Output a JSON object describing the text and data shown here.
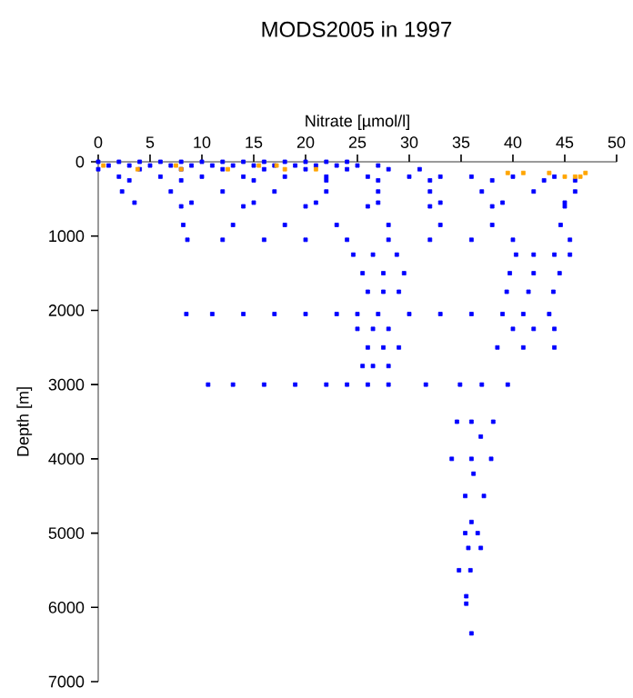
{
  "chart_data": {
    "type": "scatter",
    "title": "MODS2005 in 1997",
    "xlabel": "Nitrate [µmol/l]",
    "ylabel": "Depth [m]",
    "xlim": [
      0,
      50
    ],
    "ylim": [
      7000,
      0
    ],
    "xticks": [
      0,
      5,
      10,
      15,
      20,
      25,
      30,
      35,
      40,
      45,
      50
    ],
    "yticks": [
      0,
      1000,
      2000,
      3000,
      4000,
      5000,
      6000,
      7000
    ],
    "marker": "square",
    "series": [
      {
        "color": "#0000ff",
        "x": [
          0,
          2,
          4,
          6,
          8,
          10,
          12,
          14,
          16,
          18,
          20,
          22,
          24,
          1,
          3,
          5,
          7,
          9,
          11,
          13,
          15,
          17,
          19,
          21,
          23,
          25,
          27,
          0,
          4,
          8,
          12,
          16,
          20,
          24,
          28,
          31,
          2,
          6,
          10,
          14,
          18,
          22,
          26,
          30,
          33,
          36,
          40,
          44,
          3,
          8,
          15,
          22,
          27,
          32,
          38,
          43,
          46,
          2.3,
          7,
          12,
          17,
          22,
          27,
          32,
          37,
          42,
          46,
          3.5,
          9,
          15,
          21,
          27,
          33,
          39,
          45,
          8,
          14,
          20,
          26,
          32,
          38,
          45,
          8.2,
          13,
          18,
          23,
          28,
          33,
          38,
          44.6,
          8.6,
          12,
          16,
          20,
          24,
          28,
          32,
          36,
          40,
          45.5,
          24.6,
          26.5,
          28.8,
          40.3,
          42,
          44,
          45.5,
          25.5,
          27.5,
          29.5,
          39.7,
          42,
          44.5,
          26,
          27.5,
          29,
          39.4,
          41.5,
          43.9,
          8.5,
          11,
          14,
          17,
          20,
          23,
          25,
          27,
          30,
          33,
          36,
          39,
          41,
          43.5,
          25,
          26.5,
          28,
          40,
          42,
          44,
          26,
          27.5,
          29,
          38.5,
          41,
          44,
          25.5,
          26.5,
          28,
          10.6,
          13,
          16,
          19,
          22,
          24,
          26,
          28,
          31.6,
          34.9,
          37,
          39.5,
          34.6,
          36,
          38.1,
          36.9,
          34.1,
          36,
          37.9,
          36.2,
          35.4,
          37.2,
          36,
          35.4,
          36.6,
          35.7,
          36.9,
          34.8,
          35.9,
          35.5,
          35.5,
          36
        ],
        "values": [
          0,
          0,
          0,
          0,
          0,
          0,
          0,
          0,
          0,
          0,
          0,
          0,
          0,
          50,
          50,
          50,
          50,
          50,
          50,
          50,
          50,
          50,
          50,
          50,
          50,
          50,
          50,
          100,
          100,
          100,
          100,
          100,
          100,
          100,
          100,
          100,
          200,
          200,
          200,
          200,
          200,
          200,
          200,
          200,
          200,
          200,
          200,
          200,
          250,
          250,
          250,
          250,
          250,
          250,
          250,
          250,
          250,
          400,
          400,
          400,
          400,
          400,
          400,
          400,
          400,
          400,
          400,
          550,
          550,
          550,
          550,
          550,
          550,
          550,
          550,
          600,
          600,
          600,
          600,
          600,
          600,
          600,
          850,
          850,
          850,
          850,
          850,
          850,
          850,
          850,
          1050,
          1050,
          1050,
          1050,
          1050,
          1050,
          1050,
          1050,
          1050,
          1050,
          1250,
          1250,
          1250,
          1250,
          1250,
          1250,
          1250,
          1500,
          1500,
          1500,
          1500,
          1500,
          1500,
          1750,
          1750,
          1750,
          1750,
          1750,
          1750,
          2050,
          2050,
          2050,
          2050,
          2050,
          2050,
          2050,
          2050,
          2050,
          2050,
          2050,
          2050,
          2050,
          2050,
          2250,
          2250,
          2250,
          2250,
          2250,
          2250,
          2500,
          2500,
          2500,
          2500,
          2500,
          2500,
          2750,
          2750,
          2750,
          3000,
          3000,
          3000,
          3000,
          3000,
          3000,
          3000,
          3000,
          3000,
          3000,
          3000,
          3000,
          3500,
          3500,
          3500,
          3700,
          4000,
          4000,
          4000,
          4200,
          4500,
          4500,
          4850,
          5000,
          5000,
          5200,
          5200,
          5500,
          5500,
          5850,
          5950,
          6350
        ]
      },
      {
        "color": "#ffa500",
        "x": [
          0.5,
          3.8,
          7.5,
          8,
          12.5,
          15.5,
          17.2,
          18,
          21,
          39.5,
          41,
          43.5,
          45,
          46,
          46.5,
          47
        ],
        "values": [
          50,
          100,
          50,
          100,
          100,
          50,
          50,
          100,
          100,
          150,
          150,
          150,
          200,
          200,
          200,
          150
        ]
      }
    ]
  }
}
